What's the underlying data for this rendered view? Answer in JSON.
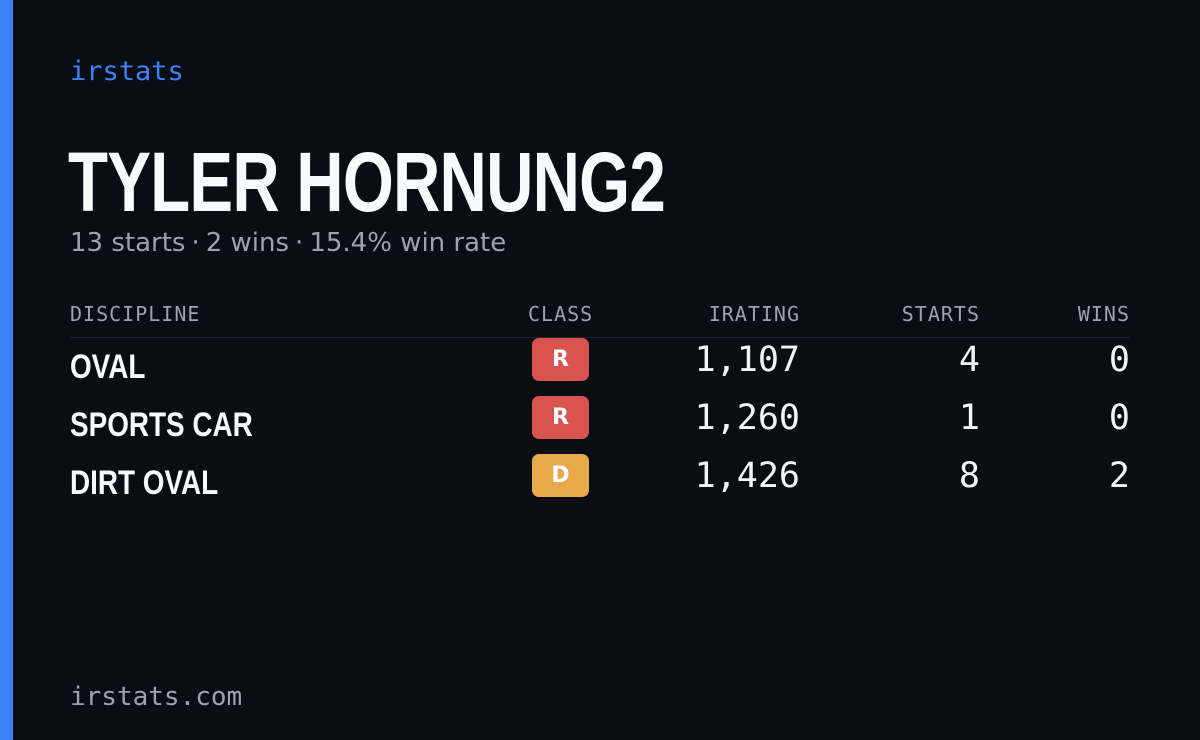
{
  "brand": "irstats",
  "driver": {
    "name": "TYLER HORNUNG2",
    "starts_text": "13 starts",
    "wins_text": "2 wins",
    "win_rate_text": "15.4% win rate",
    "separator": "·"
  },
  "table": {
    "headers": {
      "discipline": "DISCIPLINE",
      "class": "CLASS",
      "irating": "IRATING",
      "starts": "STARTS",
      "wins": "WINS"
    },
    "rows": [
      {
        "discipline": "OVAL",
        "class": "R",
        "class_color": "#d9534f",
        "irating": "1,107",
        "starts": "4",
        "wins": "0"
      },
      {
        "discipline": "SPORTS CAR",
        "class": "R",
        "class_color": "#d9534f",
        "irating": "1,260",
        "starts": "1",
        "wins": "0"
      },
      {
        "discipline": "DIRT OVAL",
        "class": "D",
        "class_color": "#e8a94a",
        "irating": "1,426",
        "starts": "8",
        "wins": "2"
      }
    ]
  },
  "footer": "irstats.com",
  "colors": {
    "background": "#0a0d14",
    "accent": "#3b82f6",
    "muted_text": "#9ca3af",
    "class_R": "#d9534f",
    "class_D": "#e8a94a"
  }
}
